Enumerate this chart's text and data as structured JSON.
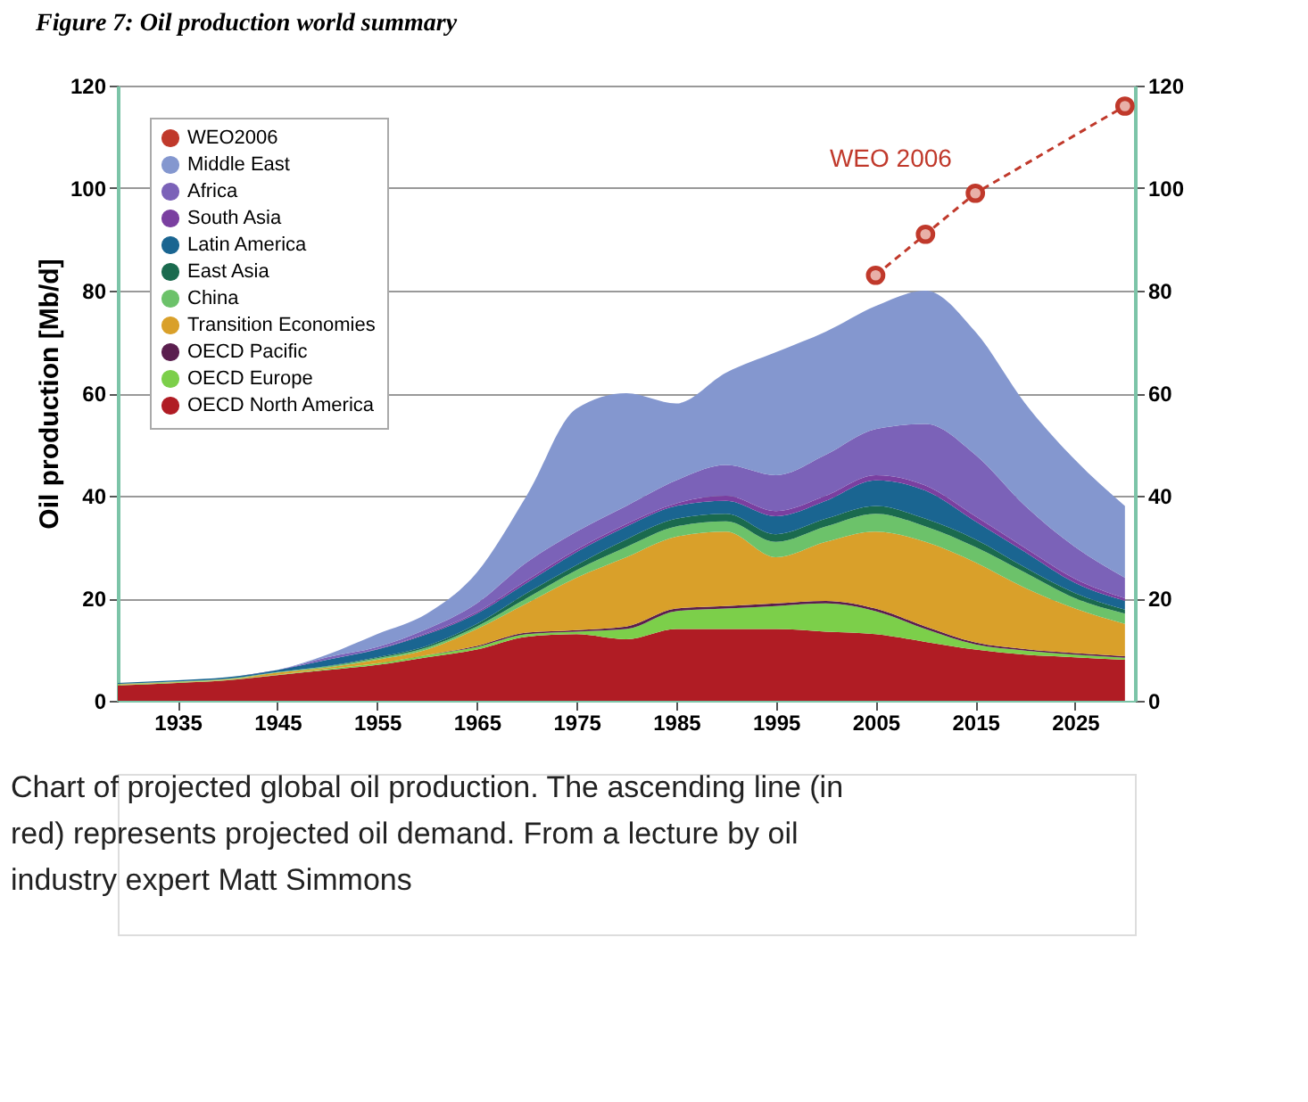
{
  "chart_data": {
    "type": "area",
    "stacked": true,
    "title": "Figure 7: Oil production world summary",
    "ylabel": "Oil production [Mb/d]",
    "x": [
      1929,
      1935,
      1940,
      1945,
      1950,
      1955,
      1960,
      1965,
      1970,
      1975,
      1980,
      1985,
      1990,
      1995,
      2000,
      2005,
      2010,
      2015,
      2020,
      2025,
      2030
    ],
    "series": [
      {
        "name": "OECD North America",
        "color": "#b01c24",
        "values": [
          3,
          3.5,
          4,
          5,
          6,
          7,
          8.5,
          10,
          12.5,
          13,
          12,
          14,
          14,
          14,
          13.5,
          13,
          11.5,
          10,
          9,
          8.5,
          8
        ]
      },
      {
        "name": "OECD Europe",
        "color": "#7ccf4a",
        "values": [
          0.1,
          0.1,
          0.1,
          0.1,
          0.2,
          0.3,
          0.4,
          0.5,
          0.5,
          0.5,
          2,
          3.5,
          4,
          4.5,
          5.5,
          4.5,
          2.5,
          1,
          0.8,
          0.5,
          0.4
        ]
      },
      {
        "name": "OECD Pacific",
        "color": "#5a1e4e",
        "values": [
          0,
          0,
          0,
          0,
          0,
          0,
          0,
          0.2,
          0.3,
          0.3,
          0.5,
          0.5,
          0.5,
          0.5,
          0.5,
          0.5,
          0.5,
          0.4,
          0.3,
          0.3,
          0.3
        ]
      },
      {
        "name": "Transition Economies",
        "color": "#d9a02a",
        "values": [
          0.1,
          0.1,
          0.1,
          0.4,
          0.3,
          0.7,
          1.1,
          3.3,
          5.7,
          10.2,
          13.5,
          14,
          14.5,
          9,
          11.5,
          15,
          16.5,
          15.6,
          11.9,
          8.7,
          6.3
        ]
      },
      {
        "name": "China",
        "color": "#6cc26a",
        "values": [
          0.1,
          0.1,
          0.1,
          0.1,
          0.2,
          0.3,
          0.4,
          0.5,
          1,
          1.5,
          2,
          2,
          2,
          3,
          3,
          3.5,
          3,
          3,
          3,
          2,
          2
        ]
      },
      {
        "name": "East Asia",
        "color": "#1a6a4e",
        "values": [
          0,
          0,
          0,
          0,
          0.1,
          0.2,
          0.3,
          0.5,
          1,
          1,
          1.5,
          1.5,
          1.5,
          1.5,
          1.5,
          1.5,
          1.5,
          1.5,
          1,
          1,
          0.8
        ]
      },
      {
        "name": "Latin America",
        "color": "#1a6591",
        "values": [
          0.2,
          0.2,
          0.3,
          0.4,
          1.2,
          1.5,
          2.3,
          2,
          2,
          2.5,
          2.5,
          2.5,
          2.5,
          3.5,
          3.5,
          5,
          5.5,
          3.5,
          3,
          2,
          1.7
        ]
      },
      {
        "name": "South Asia",
        "color": "#7a3fa0",
        "values": [
          0,
          0,
          0,
          0,
          0,
          0.1,
          0.2,
          0.3,
          0.5,
          0.5,
          0.5,
          0.5,
          1,
          1,
          1,
          1,
          1,
          1,
          0.8,
          0.8,
          0.5
        ]
      },
      {
        "name": "Africa",
        "color": "#7b62b8",
        "values": [
          0,
          0,
          0,
          0,
          0.5,
          0.4,
          0.8,
          1.7,
          3.5,
          3.5,
          3.5,
          4.5,
          6,
          7,
          8,
          9,
          12,
          12,
          8.2,
          6.2,
          4
        ]
      },
      {
        "name": "Middle East",
        "color": "#8497cf",
        "values": [
          0,
          0,
          0,
          0,
          0.5,
          2.5,
          3,
          6,
          13,
          24,
          22,
          15,
          18,
          24,
          24,
          24,
          26,
          24,
          20,
          17,
          14
        ]
      },
      {
        "name": "WEO2006",
        "color": "#c0392b",
        "type": "line",
        "marker": "circle",
        "line_style": "dashed",
        "x": [
          2005,
          2010,
          2015,
          2030
        ],
        "values": [
          83,
          91,
          99,
          116
        ]
      }
    ],
    "xlim": [
      1929,
      2031
    ],
    "xticks": [
      1935,
      1945,
      1955,
      1965,
      1975,
      1985,
      1995,
      2005,
      2015,
      2025
    ],
    "ylim": [
      0,
      120
    ],
    "yticks": [
      0,
      20,
      40,
      60,
      80,
      100,
      120
    ],
    "y2lim": [
      0,
      120
    ],
    "y2ticks": [
      0,
      20,
      40,
      60,
      80,
      100,
      120
    ],
    "grid": "y",
    "legend": "top left",
    "annotations": [
      "WEO 2006",
      "Chart of projected global oil production. The ascending line (in red) represents projected oil demand. From a lecture by oil industry expert Matt Simmons"
    ]
  }
}
